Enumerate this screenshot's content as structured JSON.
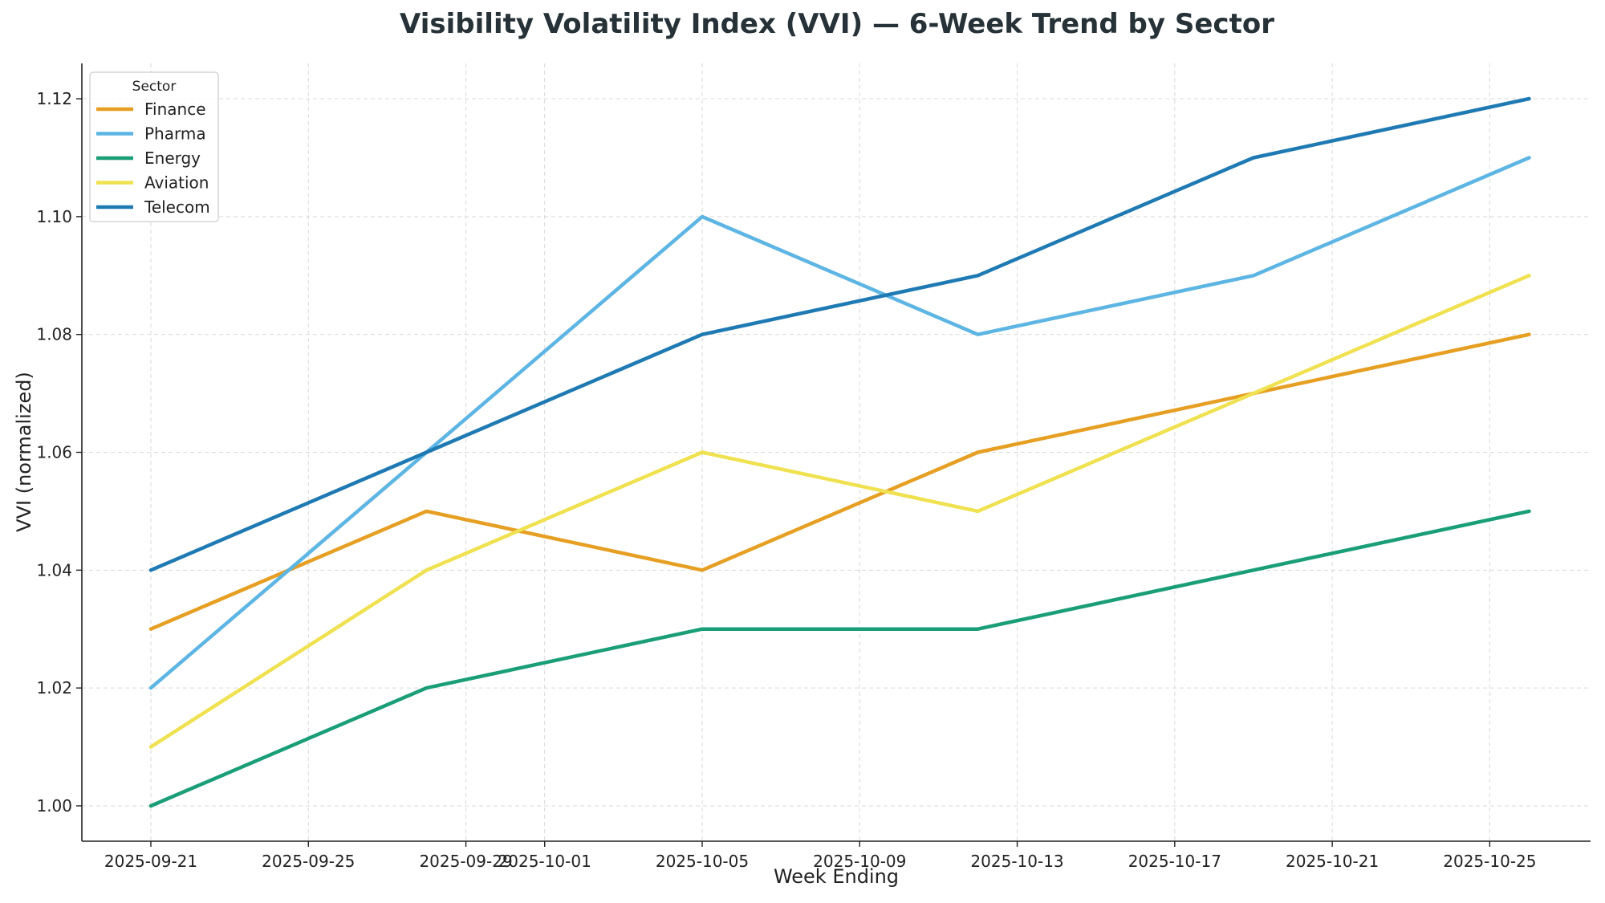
{
  "chart_data": {
    "type": "line",
    "title": "Visibility Volatility Index (VVI) — 6-Week Trend by Sector",
    "xlabel": "Week Ending",
    "ylabel": "VVI (normalized)",
    "x": [
      "2025-09-21",
      "2025-09-28",
      "2025-10-05",
      "2025-10-12",
      "2025-10-19",
      "2025-10-26"
    ],
    "x_ticks": [
      "2025-09-21",
      "2025-09-25",
      "2025-09-29",
      "2025-10-01",
      "2025-10-05",
      "2025-10-09",
      "2025-10-13",
      "2025-10-17",
      "2025-10-21",
      "2025-10-25"
    ],
    "y_ticks": [
      "1.00",
      "1.02",
      "1.04",
      "1.06",
      "1.08",
      "1.10",
      "1.12"
    ],
    "ylim": [
      0.994,
      1.126
    ],
    "grid": true,
    "legend": {
      "title": "Sector",
      "position": "top-left"
    },
    "series": [
      {
        "name": "Finance",
        "color": "#E69F22",
        "values": [
          1.03,
          1.05,
          1.04,
          1.06,
          1.07,
          1.08
        ]
      },
      {
        "name": "Pharma",
        "color": "#5DB5E4",
        "values": [
          1.02,
          1.06,
          1.1,
          1.08,
          1.09,
          1.11
        ]
      },
      {
        "name": "Energy",
        "color": "#1A9E77",
        "values": [
          1.0,
          1.02,
          1.03,
          1.03,
          1.04,
          1.05
        ]
      },
      {
        "name": "Aviation",
        "color": "#EFE150",
        "values": [
          1.01,
          1.04,
          1.06,
          1.05,
          1.07,
          1.09
        ]
      },
      {
        "name": "Telecom",
        "color": "#1F7AB4",
        "values": [
          1.04,
          1.06,
          1.08,
          1.09,
          1.11,
          1.12
        ]
      }
    ]
  }
}
